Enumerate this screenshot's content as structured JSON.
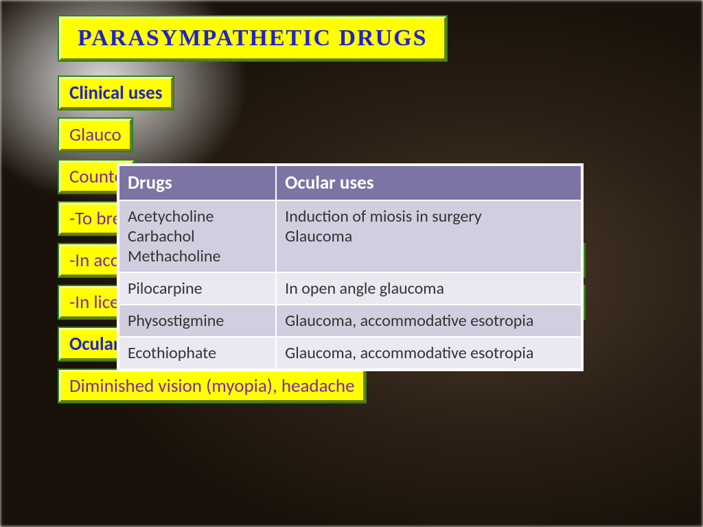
{
  "title": "PARASYMPATHETIC DRUGS",
  "subtitle": "Clinical uses",
  "lines": {
    "l1": "Glauco",
    "l2": "Counte",
    "l3": "-To bre",
    "l4": "-In acc",
    "l5": "-In lice",
    "l6": "Ocular",
    "l7": "Diminished vision (myopia), headache"
  },
  "table": {
    "headers": {
      "c1": "Drugs",
      "c2": "Ocular uses"
    },
    "rows": [
      {
        "c1": "Acetycholine\nCarbachol\nMethacholine",
        "c2": "Induction of miosis in surgery\nGlaucoma"
      },
      {
        "c1": "Pilocarpine",
        "c2": "In open angle glaucoma"
      },
      {
        "c1": "Physostigmine",
        "c2": "Glaucoma, accommodative esotropia"
      },
      {
        "c1": "Ecothiophate",
        "c2": "Glaucoma, accommodative esotropia"
      }
    ],
    "header_bg": "#7d74a5",
    "row_bg_a": "#d2cee0",
    "row_bg_b": "#eae8f0",
    "border_color": "#ffffff",
    "col1_width_pct": 34
  },
  "colors": {
    "box_bg": "#ffff00",
    "box_outline": "#228822",
    "title_text": "#2222cc",
    "body_text": "#7a2aa8"
  }
}
